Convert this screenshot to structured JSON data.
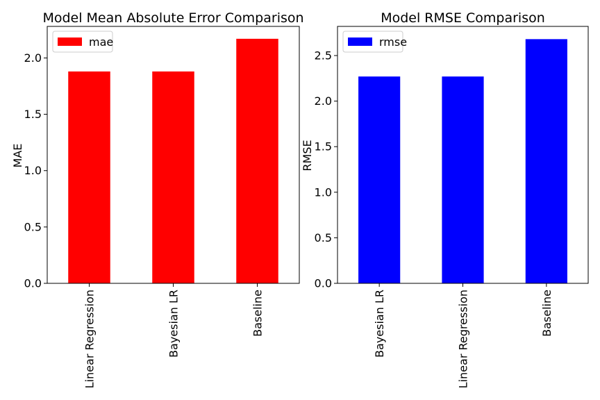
{
  "chart_data": [
    {
      "type": "bar",
      "title": "Model Mean Absolute Error Comparison",
      "xlabel": "",
      "ylabel": "MAE",
      "categories": [
        "Linear Regression",
        "Bayesian LR",
        "Baseline"
      ],
      "series": [
        {
          "name": "mae",
          "values": [
            1.88,
            1.88,
            2.17
          ],
          "color": "#ff0000"
        }
      ],
      "ylim": [
        0,
        2.28
      ],
      "yticks": [
        0.0,
        0.5,
        1.0,
        1.5,
        2.0
      ],
      "ytick_labels": [
        "0.0",
        "0.5",
        "1.0",
        "1.5",
        "2.0"
      ],
      "grid": false,
      "legend_position": "top-left"
    },
    {
      "type": "bar",
      "title": "Model RMSE Comparison",
      "xlabel": "",
      "ylabel": "RMSE",
      "categories": [
        "Bayesian LR",
        "Linear Regression",
        "Baseline"
      ],
      "series": [
        {
          "name": "rmse",
          "values": [
            2.27,
            2.27,
            2.68
          ],
          "color": "#0000ff"
        }
      ],
      "ylim": [
        0,
        2.82
      ],
      "yticks": [
        0.0,
        0.5,
        1.0,
        1.5,
        2.0,
        2.5
      ],
      "ytick_labels": [
        "0.0",
        "0.5",
        "1.0",
        "1.5",
        "2.0",
        "2.5"
      ],
      "grid": false,
      "legend_position": "top-left"
    }
  ]
}
